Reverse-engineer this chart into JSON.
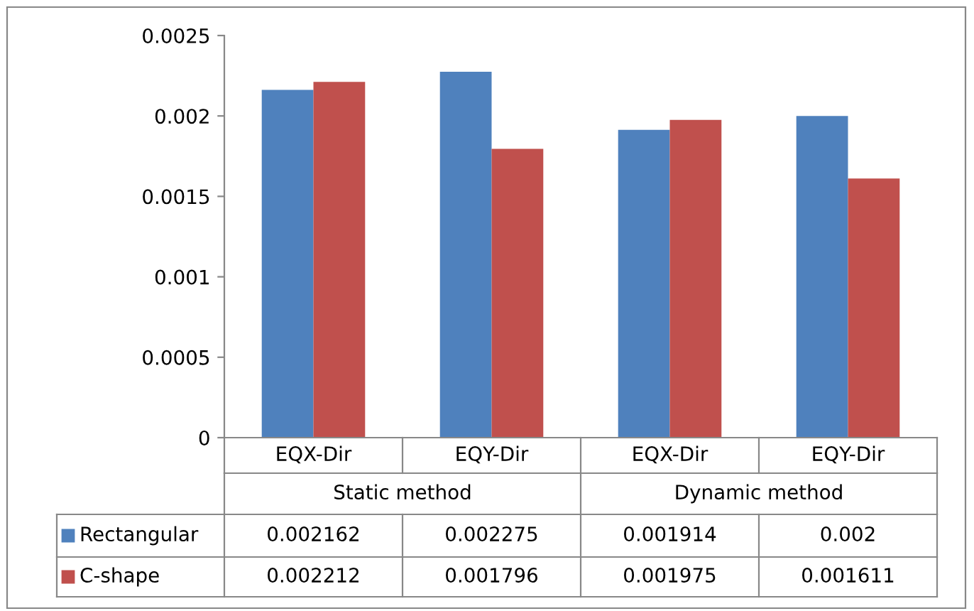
{
  "chart_data": {
    "type": "bar",
    "categories": [
      "EQX-Dir",
      "EQY-Dir",
      "EQX-Dir",
      "EQY-Dir"
    ],
    "series": [
      {
        "name": "Rectangular",
        "color": "#4f81bd",
        "values": [
          0.002162,
          0.002275,
          0.001914,
          0.002
        ]
      },
      {
        "name": "C-shape",
        "color": "#c0504d",
        "values": [
          0.002212,
          0.001796,
          0.001975,
          0.001611
        ]
      }
    ],
    "annotations": [
      "Static method",
      "Dynamic method"
    ],
    "ylim": [
      0,
      0.0025
    ],
    "yticks": [
      0,
      0.0005,
      0.001,
      0.0015,
      0.002,
      0.0025
    ],
    "grid": false,
    "legend": "bottom",
    "data_labels": true
  }
}
